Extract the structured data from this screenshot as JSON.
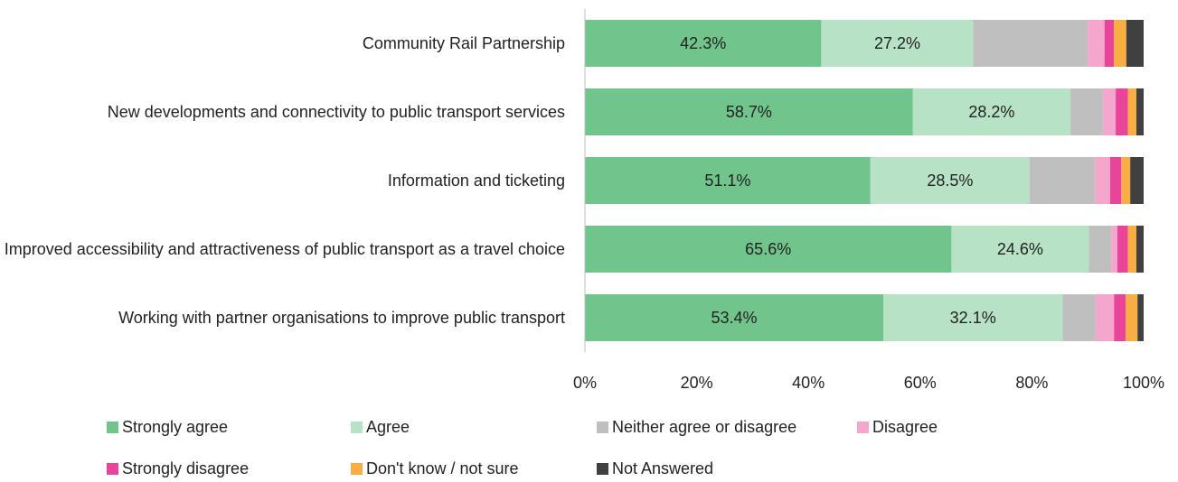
{
  "chart_data": {
    "type": "stacked_bar_horizontal",
    "categories": [
      "Community Rail Partnership",
      "New developments and connectivity to public transport services",
      "Information and ticketing",
      "Improved accessibility and attractiveness of public transport as a travel choice",
      "Working with partner organisations to improve public transport"
    ],
    "series": [
      {
        "name": "Strongly agree",
        "color": "#70c48c",
        "values": [
          42.3,
          58.7,
          51.1,
          65.6,
          53.4
        ],
        "value_labels": [
          "42.3%",
          "58.7%",
          "51.1%",
          "65.6%",
          "53.4%"
        ]
      },
      {
        "name": "Agree",
        "color": "#b8e2c6",
        "values": [
          27.2,
          28.2,
          28.5,
          24.6,
          32.1
        ],
        "value_labels": [
          "27.2%",
          "28.2%",
          "28.5%",
          "24.6%",
          "32.1%"
        ]
      },
      {
        "name": "Neither agree or disagree",
        "color": "#bfbfbf",
        "values": [
          20.5,
          5.8,
          11.7,
          4.0,
          5.9
        ]
      },
      {
        "name": "Disagree",
        "color": "#f4a6cc",
        "values": [
          3.0,
          2.3,
          2.7,
          1.1,
          3.3
        ]
      },
      {
        "name": "Strongly disagree",
        "color": "#e8449a",
        "values": [
          1.7,
          2.2,
          2.0,
          1.9,
          2.1
        ]
      },
      {
        "name": "Don't know / not sure",
        "color": "#f9ae43",
        "values": [
          2.2,
          1.5,
          1.6,
          1.5,
          2.1
        ]
      },
      {
        "name": "Not Answered",
        "color": "#404040",
        "values": [
          3.1,
          1.3,
          2.4,
          1.3,
          1.1
        ]
      }
    ],
    "xlim": [
      0,
      100
    ],
    "xticks": [
      {
        "value": 0,
        "label": "0%"
      },
      {
        "value": 20,
        "label": "20%"
      },
      {
        "value": 40,
        "label": "40%"
      },
      {
        "value": 60,
        "label": "60%"
      },
      {
        "value": 80,
        "label": "80%"
      },
      {
        "value": 100,
        "label": "100%"
      }
    ]
  }
}
